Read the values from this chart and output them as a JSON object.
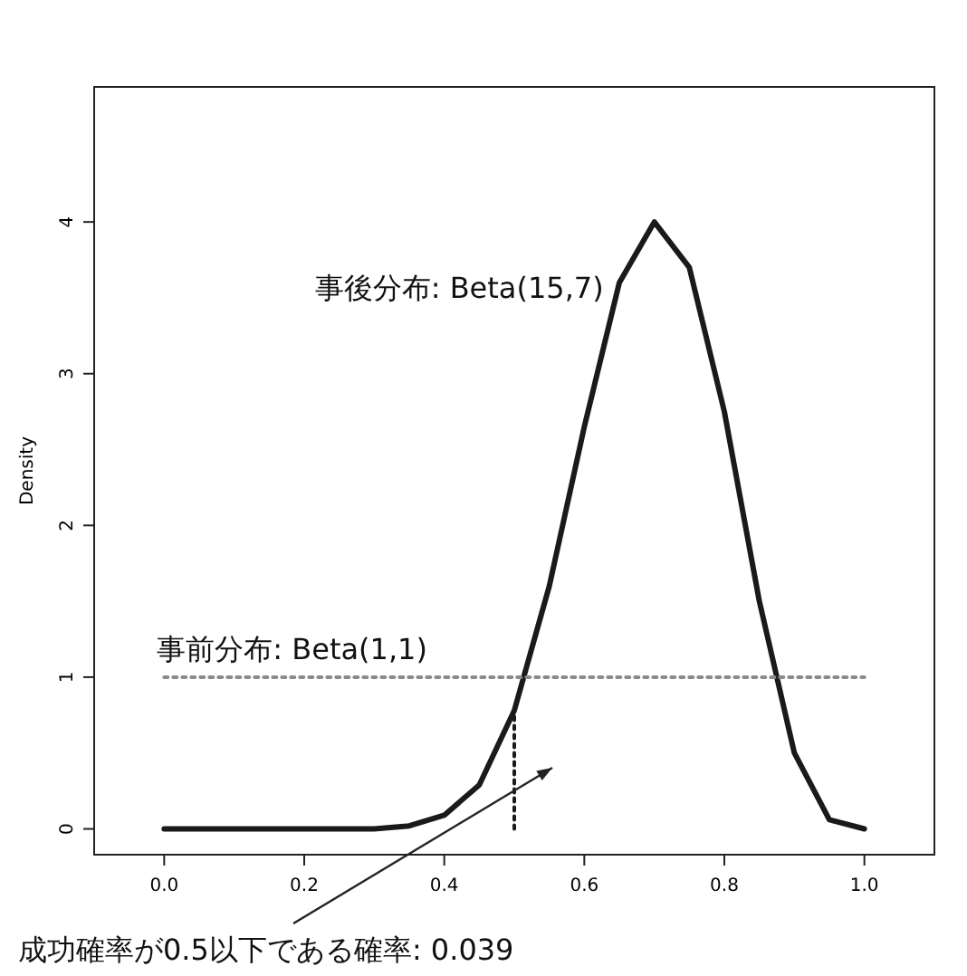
{
  "chart_data": {
    "type": "line",
    "ylabel": "Density",
    "xlim": [
      -0.1,
      1.1
    ],
    "ylim": [
      -0.17,
      4.89
    ],
    "xticks": [
      {
        "value": 0,
        "label": "0.0"
      },
      0.2,
      0.4,
      0.6,
      0.8,
      {
        "value": 1,
        "label": "1.0"
      }
    ],
    "yticks": [
      0,
      1,
      2,
      3,
      4
    ],
    "series": [
      {
        "name": "事後分布: Beta(15,7)",
        "color": "#1a1a1a",
        "x": [
          0,
          0.1,
          0.2,
          0.25,
          0.3,
          0.35,
          0.4,
          0.45,
          0.5,
          0.55,
          0.6,
          0.65,
          0.7,
          0.75,
          0.8,
          0.85,
          0.9,
          0.95,
          1.0
        ],
        "values": [
          0,
          0,
          0,
          0,
          0,
          0.02,
          0.09,
          0.29,
          0.78,
          1.6,
          2.65,
          3.6,
          4.0,
          3.7,
          2.75,
          1.5,
          0.5,
          0.06,
          0
        ]
      },
      {
        "name": "事前分布: Beta(1,1)",
        "color": "#8a8a8a",
        "line_style": "dotted",
        "x": [
          0,
          1
        ],
        "values": [
          1,
          1
        ]
      },
      {
        "color": "#1a1a1a",
        "line_style": "dotted",
        "x": [
          0.5,
          0.5
        ],
        "values": [
          0,
          0.78
        ]
      }
    ],
    "annotations": [
      "成功確率が0.5以下である確率: 0.039"
    ]
  }
}
